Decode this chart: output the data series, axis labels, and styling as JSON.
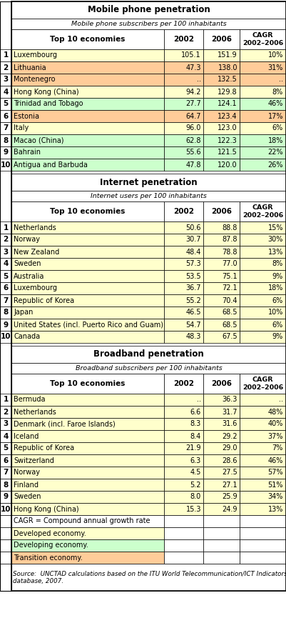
{
  "mobile_title": "Mobile phone penetration",
  "mobile_subtitle": "Mobile phone subscribers per 100 inhabitants",
  "internet_title": "Internet penetration",
  "internet_subtitle": "Internet users per 100 inhabitants",
  "broadband_title": "Broadband penetration",
  "broadband_subtitle": "Broadband subscribers per 100 inhabitants",
  "mobile_data": [
    [
      1,
      "Luxembourg",
      "105.1",
      "151.9",
      "10%",
      "developed"
    ],
    [
      2,
      "Lithuania",
      "47.3",
      "138.0",
      "31%",
      "transition"
    ],
    [
      3,
      "Montenegro",
      "..",
      "132.5",
      "..",
      "transition"
    ],
    [
      4,
      "Hong Kong (China)",
      "94.2",
      "129.8",
      "8%",
      "developed"
    ],
    [
      5,
      "Trinidad and Tobago",
      "27.7",
      "124.1",
      "46%",
      "developing"
    ],
    [
      6,
      "Estonia",
      "64.7",
      "123.4",
      "17%",
      "transition"
    ],
    [
      7,
      "Italy",
      "96.0",
      "123.0",
      "6%",
      "developed"
    ],
    [
      8,
      "Macao (China)",
      "62.8",
      "122.3",
      "18%",
      "developing"
    ],
    [
      9,
      "Bahrain",
      "55.6",
      "121.5",
      "22%",
      "developing"
    ],
    [
      10,
      "Antigua and Barbuda",
      "47.8",
      "120.0",
      "26%",
      "developing"
    ]
  ],
  "internet_data": [
    [
      1,
      "Netherlands",
      "50.6",
      "88.8",
      "15%",
      "developed"
    ],
    [
      2,
      "Norway",
      "30.7",
      "87.8",
      "30%",
      "developed"
    ],
    [
      3,
      "New Zealand",
      "48.4",
      "78.8",
      "13%",
      "developed"
    ],
    [
      4,
      "Sweden",
      "57.3",
      "77.0",
      "8%",
      "developed"
    ],
    [
      5,
      "Australia",
      "53.5",
      "75.1",
      "9%",
      "developed"
    ],
    [
      6,
      "Luxembourg",
      "36.7",
      "72.1",
      "18%",
      "developed"
    ],
    [
      7,
      "Republic of Korea",
      "55.2",
      "70.4",
      "6%",
      "developed"
    ],
    [
      8,
      "Japan",
      "46.5",
      "68.5",
      "10%",
      "developed"
    ],
    [
      9,
      "United States (incl. Puerto Rico and Guam)",
      "54.7",
      "68.5",
      "6%",
      "developed"
    ],
    [
      10,
      "Canada",
      "48.3",
      "67.5",
      "9%",
      "developed"
    ]
  ],
  "broadband_data": [
    [
      1,
      "Bermuda",
      "..",
      "36.3",
      "..",
      "developed"
    ],
    [
      2,
      "Netherlands",
      "6.6",
      "31.7",
      "48%",
      "developed"
    ],
    [
      3,
      "Denmark (incl. Faroe Islands)",
      "8.3",
      "31.6",
      "40%",
      "developed"
    ],
    [
      4,
      "Iceland",
      "8.4",
      "29.2",
      "37%",
      "developed"
    ],
    [
      5,
      "Republic of Korea",
      "21.9",
      "29.0",
      "7%",
      "developed"
    ],
    [
      6,
      "Switzerland",
      "6.3",
      "28.6",
      "46%",
      "developed"
    ],
    [
      7,
      "Norway",
      "4.5",
      "27.5",
      "57%",
      "developed"
    ],
    [
      8,
      "Finland",
      "5.2",
      "27.1",
      "51%",
      "developed"
    ],
    [
      9,
      "Sweden",
      "8.0",
      "25.9",
      "34%",
      "developed"
    ],
    [
      10,
      "Hong Kong (China)",
      "15.3",
      "24.9",
      "13%",
      "developed"
    ]
  ],
  "color_developed": "#FFFFCC",
  "color_developing": "#CCFFCC",
  "color_transition": "#FFCC99",
  "color_white": "#FFFFFF",
  "color_border": "#000000",
  "fig_width": 4.01,
  "fig_height": 8.72,
  "dpi": 100
}
